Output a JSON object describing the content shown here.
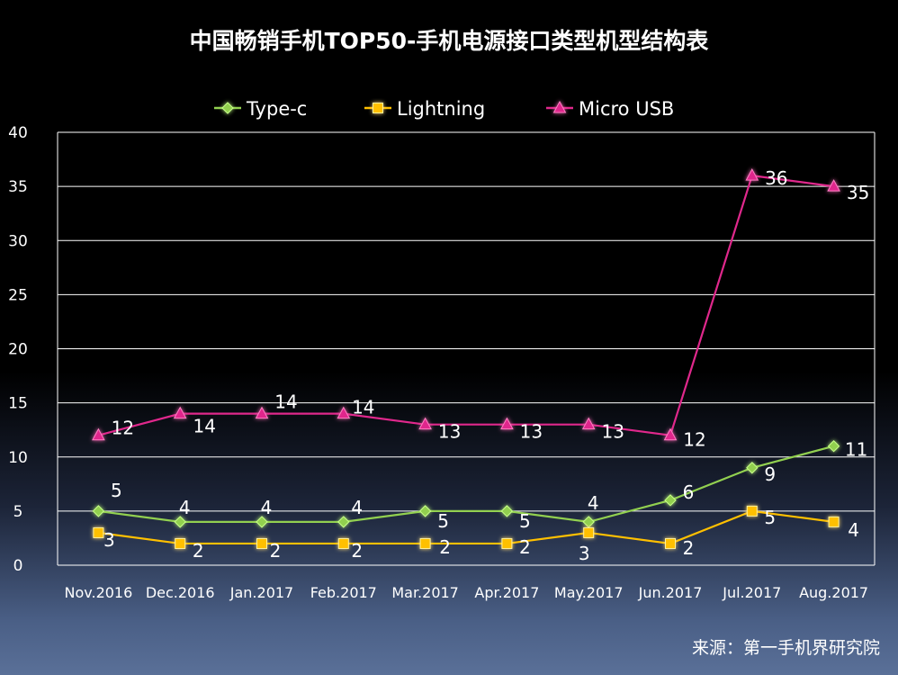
{
  "title": "中国畅销手机TOP50-手机电源接口类型机型结构表",
  "source": "来源：第一手机界研究院",
  "chart_data": {
    "type": "line",
    "categories": [
      "Nov.2016",
      "Dec.2016",
      "Jan.2017",
      "Feb.2017",
      "Mar.2017",
      "Apr.2017",
      "May.2017",
      "Jun.2017",
      "Jul.2017",
      "Aug.2017"
    ],
    "ylim": [
      0,
      40
    ],
    "yticks": [
      0,
      5,
      10,
      15,
      20,
      25,
      30,
      35,
      40
    ],
    "grid": true,
    "legend": "top",
    "series": [
      {
        "name": "Type-c",
        "color": "#92d050",
        "marker": "diamond",
        "values": [
          5,
          4,
          4,
          4,
          5,
          5,
          4,
          6,
          9,
          11
        ]
      },
      {
        "name": "Lightning",
        "color": "#ffc000",
        "marker": "square",
        "values": [
          3,
          2,
          2,
          2,
          2,
          2,
          3,
          2,
          5,
          4
        ]
      },
      {
        "name": "Micro USB",
        "color": "#e0288c",
        "marker": "triangle",
        "values": [
          12,
          14,
          14,
          14,
          13,
          13,
          13,
          12,
          36,
          35
        ]
      }
    ]
  }
}
